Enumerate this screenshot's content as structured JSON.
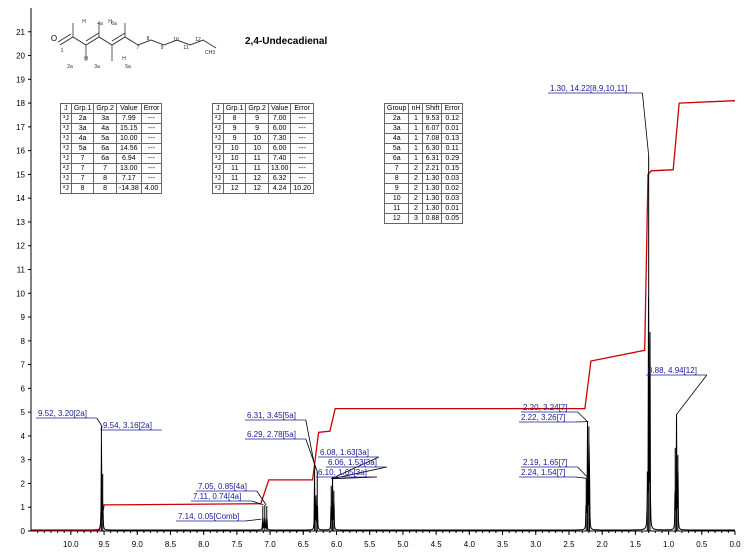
{
  "compound": {
    "name": "2,4-Undecadienal",
    "structure_labels": [
      "O",
      "1",
      "2a",
      "3a",
      "4a",
      "5a",
      "6a",
      "7",
      "8",
      "9",
      "10",
      "11",
      "12",
      "H",
      "H",
      "H",
      "H",
      "CH3"
    ]
  },
  "coupling_table_1": {
    "headers": [
      "J",
      "Grp.1",
      "Grp.2",
      "Value",
      "Error"
    ],
    "rows": [
      [
        "³J",
        "2a",
        "3a",
        "7.99",
        "---"
      ],
      [
        "³J",
        "3a",
        "4a",
        "15.15",
        "---"
      ],
      [
        "³J",
        "4a",
        "5a",
        "10.00",
        "---"
      ],
      [
        "³J",
        "5a",
        "6a",
        "14.56",
        "---"
      ],
      [
        "³J",
        "7",
        "6a",
        "6.94",
        "---"
      ],
      [
        "²J",
        "7",
        "7",
        "13.00",
        "---"
      ],
      [
        "³J",
        "7",
        "8",
        "7.17",
        "---"
      ],
      [
        "²J",
        "8",
        "8",
        "-14.38",
        "4.00"
      ]
    ]
  },
  "coupling_table_2": {
    "headers": [
      "J",
      "Grp.1",
      "Grp.2",
      "Value",
      "Error"
    ],
    "rows": [
      [
        "²J",
        "8",
        "9",
        "7.00",
        "---"
      ],
      [
        "²J",
        "9",
        "9",
        "6.00",
        "---"
      ],
      [
        "³J",
        "9",
        "10",
        "7.30",
        "---"
      ],
      [
        "²J",
        "10",
        "10",
        "6.00",
        "---"
      ],
      [
        "³J",
        "10",
        "11",
        "7.40",
        "---"
      ],
      [
        "²J",
        "11",
        "11",
        "13.00",
        "---"
      ],
      [
        "³J",
        "11",
        "12",
        "6.32",
        "---"
      ],
      [
        "²J",
        "12",
        "12",
        "4.24",
        "10.20"
      ]
    ]
  },
  "shift_table": {
    "headers": [
      "Group",
      "nH",
      "Shift",
      "Error"
    ],
    "rows": [
      [
        "2a",
        "1",
        "9.53",
        "0.12"
      ],
      [
        "3a",
        "1",
        "6.07",
        "0.01"
      ],
      [
        "4a",
        "1",
        "7.08",
        "0.13"
      ],
      [
        "5a",
        "1",
        "6.30",
        "0.11"
      ],
      [
        "6a",
        "1",
        "6.31",
        "0.29"
      ],
      [
        "7",
        "2",
        "2.21",
        "0.15"
      ],
      [
        "8",
        "2",
        "1.30",
        "0.03"
      ],
      [
        "9",
        "2",
        "1.30",
        "0.02"
      ],
      [
        "10",
        "2",
        "1.30",
        "0.03"
      ],
      [
        "11",
        "2",
        "1.30",
        "0.01"
      ],
      [
        "12",
        "3",
        "0.88",
        "0.05"
      ]
    ]
  },
  "chart_data": {
    "type": "line",
    "title": "",
    "xlabel": "",
    "ylabel": "",
    "xlim": [
      10.6,
      0.0
    ],
    "ylim": [
      0,
      22
    ],
    "x_ticks": [
      10.0,
      9.5,
      9.0,
      8.5,
      8.0,
      7.5,
      7.0,
      6.5,
      6.0,
      5.5,
      5.0,
      4.5,
      4.0,
      3.5,
      3.0,
      2.5,
      2.0,
      1.5,
      1.0,
      0.5,
      0.0
    ],
    "x_tick_labels": [
      "10.0",
      "9.5",
      "9.0",
      "8.5",
      "8.0",
      "7.5",
      "7.0",
      "6.5",
      "6.0",
      "5.5",
      "5.0",
      "4.5",
      "4.0",
      "3.5",
      "3.0",
      "2.5",
      "2.0",
      "1.5",
      "1.0",
      "0.5",
      "0.0"
    ],
    "y_ticks": [
      0,
      1,
      2,
      3,
      4,
      5,
      6,
      7,
      8,
      9,
      10,
      11,
      12,
      13,
      14,
      15,
      16,
      17,
      18,
      19,
      20,
      21
    ],
    "y_tick_labels": [
      "0",
      "1",
      "2",
      "3",
      "4",
      "5",
      "6",
      "7",
      "8",
      "9",
      "10",
      "11",
      "12",
      "13",
      "14",
      "15",
      "16",
      "17",
      "18",
      "19",
      "20",
      "21"
    ],
    "colors": {
      "spectrum": "#000000",
      "integral": "#cc0000",
      "annotation": "#1a1a99"
    },
    "spectrum_peaks": [
      {
        "x": 9.54,
        "h": 4.4
      },
      {
        "x": 9.52,
        "h": 2.4
      },
      {
        "x": 7.11,
        "h": 1.05
      },
      {
        "x": 7.08,
        "h": 1.1
      },
      {
        "x": 7.05,
        "h": 1.05
      },
      {
        "x": 6.33,
        "h": 2.6
      },
      {
        "x": 6.31,
        "h": 1.5
      },
      {
        "x": 6.29,
        "h": 2.5
      },
      {
        "x": 6.08,
        "h": 1.9
      },
      {
        "x": 6.06,
        "h": 2.2
      },
      {
        "x": 6.04,
        "h": 1.7
      },
      {
        "x": 2.24,
        "h": 2.2
      },
      {
        "x": 2.22,
        "h": 4.6
      },
      {
        "x": 2.2,
        "h": 4.4
      },
      {
        "x": 2.19,
        "h": 2.2
      },
      {
        "x": 1.32,
        "h": 2.5
      },
      {
        "x": 1.3,
        "h": 15.8
      },
      {
        "x": 1.28,
        "h": 8.0
      },
      {
        "x": 0.9,
        "h": 3.5
      },
      {
        "x": 0.88,
        "h": 4.9
      },
      {
        "x": 0.86,
        "h": 3.2
      }
    ],
    "integral_curve": [
      [
        10.6,
        0.0
      ],
      [
        9.57,
        0.02
      ],
      [
        9.5,
        1.1
      ],
      [
        7.14,
        1.15
      ],
      [
        7.02,
        2.15
      ],
      [
        6.36,
        2.15
      ],
      [
        6.27,
        4.15
      ],
      [
        6.1,
        4.2
      ],
      [
        6.02,
        5.15
      ],
      [
        2.26,
        5.15
      ],
      [
        2.17,
        7.15
      ],
      [
        1.36,
        7.6
      ],
      [
        1.31,
        15.0
      ],
      [
        1.26,
        15.15
      ],
      [
        0.93,
        15.2
      ],
      [
        0.84,
        18.0
      ],
      [
        0.0,
        18.1
      ]
    ],
    "peak_annotations": [
      {
        "text": "9.52, 3.20[2a]",
        "x": 9.53,
        "h": 4.4
      },
      {
        "text": "9.54, 3.16[2a]",
        "x": 9.53,
        "h": 4.4
      },
      {
        "text": "7.05, 0.85[4a]",
        "x": 7.06,
        "h": 1.1
      },
      {
        "text": "7.11, 0.74[4a]",
        "x": 7.1,
        "h": 1.1
      },
      {
        "text": "7.14, 0.05[Comb]",
        "x": 7.13,
        "h": 0.5
      },
      {
        "text": "6.31, 3.45[5a]",
        "x": 6.32,
        "h": 2.6
      },
      {
        "text": "6.29, 2.78[5a]",
        "x": 6.29,
        "h": 2.5
      },
      {
        "text": "6.08, 1.63[3a]",
        "x": 6.08,
        "h": 2.2
      },
      {
        "text": "6.06, 1.53[3a]",
        "x": 6.06,
        "h": 2.2
      },
      {
        "text": "6.10, 1.65[3a]",
        "x": 6.05,
        "h": 2.2
      },
      {
        "text": "2.20, 3.24[7]",
        "x": 2.22,
        "h": 4.6
      },
      {
        "text": "2.22, 3.26[7]",
        "x": 2.21,
        "h": 4.6
      },
      {
        "text": "2.19, 1.65[7]",
        "x": 2.2,
        "h": 2.2
      },
      {
        "text": "2.24, 1.54[7]",
        "x": 2.19,
        "h": 2.2
      },
      {
        "text": "1.30, 14.22[8,9,10,11]",
        "x": 1.3,
        "h": 15.8
      },
      {
        "text": "0.88, 4.94[12]",
        "x": 0.88,
        "h": 4.9
      }
    ]
  }
}
